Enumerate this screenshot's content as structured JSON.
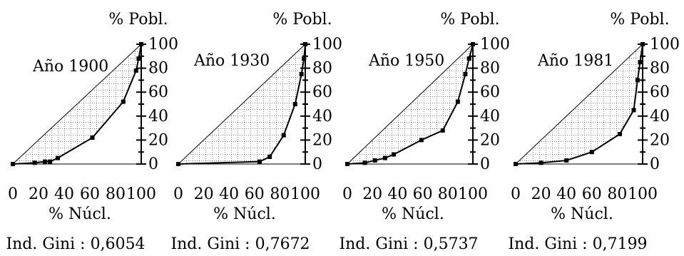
{
  "chart_data": [
    {
      "type": "line",
      "title": "Año 1900",
      "xlabel": "% Núcl.",
      "ylabel": "% Pobl.",
      "xlim": [
        0,
        100
      ],
      "ylim": [
        0,
        100
      ],
      "xticks": [
        "0",
        "20",
        "40",
        "60",
        "80",
        "100"
      ],
      "yticks": [
        "0",
        "20",
        "40",
        "60",
        "80",
        "100"
      ],
      "grid": true,
      "diagonal": true,
      "series": [
        {
          "x": [
            0,
            17,
            25,
            29,
            35,
            62,
            86,
            96,
            98,
            100
          ],
          "y": [
            0,
            1,
            2,
            2,
            5,
            22,
            52,
            78,
            88,
            100
          ]
        }
      ],
      "annotation": "Ind. Gini : 0,6054"
    },
    {
      "type": "line",
      "title": "Año 1930",
      "xlabel": "% Núcl.",
      "ylabel": "% Pobl.",
      "xlim": [
        0,
        100
      ],
      "ylim": [
        0,
        100
      ],
      "xticks": [
        "0",
        "20",
        "40",
        "60",
        "80",
        "100"
      ],
      "yticks": [
        "0",
        "20",
        "40",
        "60",
        "80",
        "100"
      ],
      "grid": true,
      "diagonal": true,
      "series": [
        {
          "x": [
            0,
            64,
            72,
            83,
            92,
            97,
            99,
            100
          ],
          "y": [
            0,
            2,
            6,
            24,
            50,
            75,
            88,
            100
          ]
        }
      ],
      "annotation": "Ind. Gini : 0,7672"
    },
    {
      "type": "line",
      "title": "Año 1950",
      "xlabel": "% Núcl.",
      "ylabel": "% Pobl.",
      "xlim": [
        0,
        100
      ],
      "ylim": [
        0,
        100
      ],
      "xticks": [
        "0",
        "20",
        "40",
        "60",
        "80",
        "100"
      ],
      "yticks": [
        "0",
        "20",
        "40",
        "60",
        "80",
        "100"
      ],
      "grid": true,
      "diagonal": true,
      "series": [
        {
          "x": [
            0,
            14,
            22,
            30,
            37,
            59,
            76,
            88,
            94,
            97,
            100
          ],
          "y": [
            0,
            1,
            3,
            5,
            8,
            20,
            28,
            52,
            75,
            88,
            100
          ]
        }
      ],
      "annotation": "Ind. Gini : 0,5737"
    },
    {
      "type": "line",
      "title": "Año 1981",
      "xlabel": "% Núcl.",
      "ylabel": "% Pobl.",
      "xlim": [
        0,
        100
      ],
      "ylim": [
        0,
        100
      ],
      "xticks": [
        "0",
        "20",
        "40",
        "60",
        "80",
        "100"
      ],
      "yticks": [
        "0",
        "20",
        "40",
        "60",
        "80",
        "100"
      ],
      "grid": true,
      "diagonal": true,
      "series": [
        {
          "x": [
            0,
            20,
            40,
            60,
            82,
            93,
            96,
            98,
            100
          ],
          "y": [
            0,
            1,
            3,
            10,
            25,
            45,
            70,
            85,
            100
          ]
        }
      ],
      "annotation": "Ind. Gini : 0,7199"
    }
  ]
}
